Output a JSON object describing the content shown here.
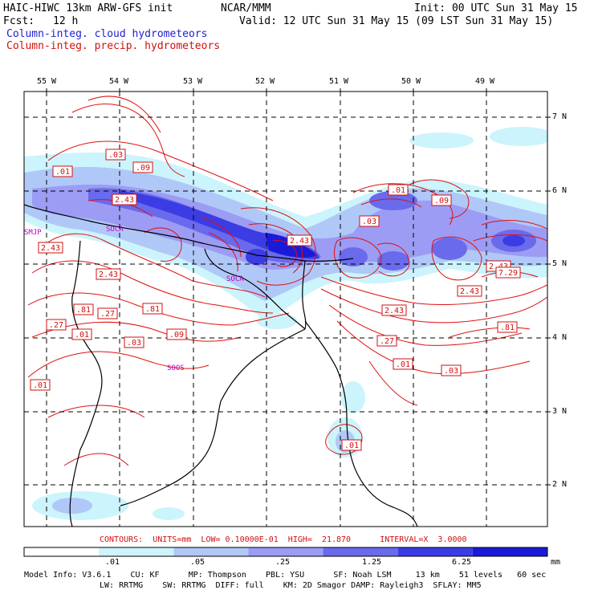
{
  "header": {
    "model_title": "HAIC-HIWC 13km ARW-GFS init",
    "org": "NCAR/MMM",
    "init": "Init: 00 UTC Sun 31 May 15",
    "fcst_label": "Fcst:",
    "fcst_value": "12 h",
    "valid": "Valid: 12 UTC Sun 31 May 15 (09 LST Sun 31 May 15)",
    "field_cloud": "Column-integ. cloud hydrometeors",
    "field_precip": "Column-integ. precip. hydrometeors"
  },
  "axes": {
    "lon_labels": [
      "55 W",
      "54 W",
      "53 W",
      "52 W",
      "51 W",
      "50 W",
      "49 W"
    ],
    "lat_labels": [
      "7 N",
      "6 N",
      "5 N",
      "4 N",
      "3 N",
      "2 N"
    ]
  },
  "stations": [
    "SMJP",
    "SOCA",
    "SOCA",
    "SOOS"
  ],
  "contour_labels": [
    ".03",
    ".01",
    ".09",
    ".01",
    ".09",
    "2.43",
    "2.43",
    ".03",
    "2.43",
    "2.43",
    "2.43",
    "2.43",
    ".81",
    ".27",
    ".81",
    ".27",
    ".01",
    ".09",
    ".03",
    "2.43",
    ".27",
    ".01",
    ".03",
    ".81",
    ".01",
    ".01",
    "7.29"
  ],
  "contour_info": "CONTOURS:  UNITS=mm  LOW= 0.10000E-01  HIGH=  21.870      INTERVAL=X  3.0000",
  "colorbar": {
    "ticks": [
      ".01",
      ".05",
      ".25",
      "1.25",
      "6.25"
    ],
    "units": "mm",
    "colors": [
      "#ffffff",
      "#ccf4fc",
      "#b0c8f8",
      "#9c9cf4",
      "#6a6aec",
      "#3c3ce4",
      "#1a1ad8"
    ]
  },
  "model_info": {
    "line1": "Model Info: V3.6.1    CU: KF      MP: Thompson    PBL: YSU      SF: Noah LSM     13 km    51 levels   60 sec",
    "line2": "LW: RRTMG    SW: RRTMG  DIFF: full    KM: 2D Smagor DAMP: Rayleigh3  SFLAY: MM5"
  }
}
